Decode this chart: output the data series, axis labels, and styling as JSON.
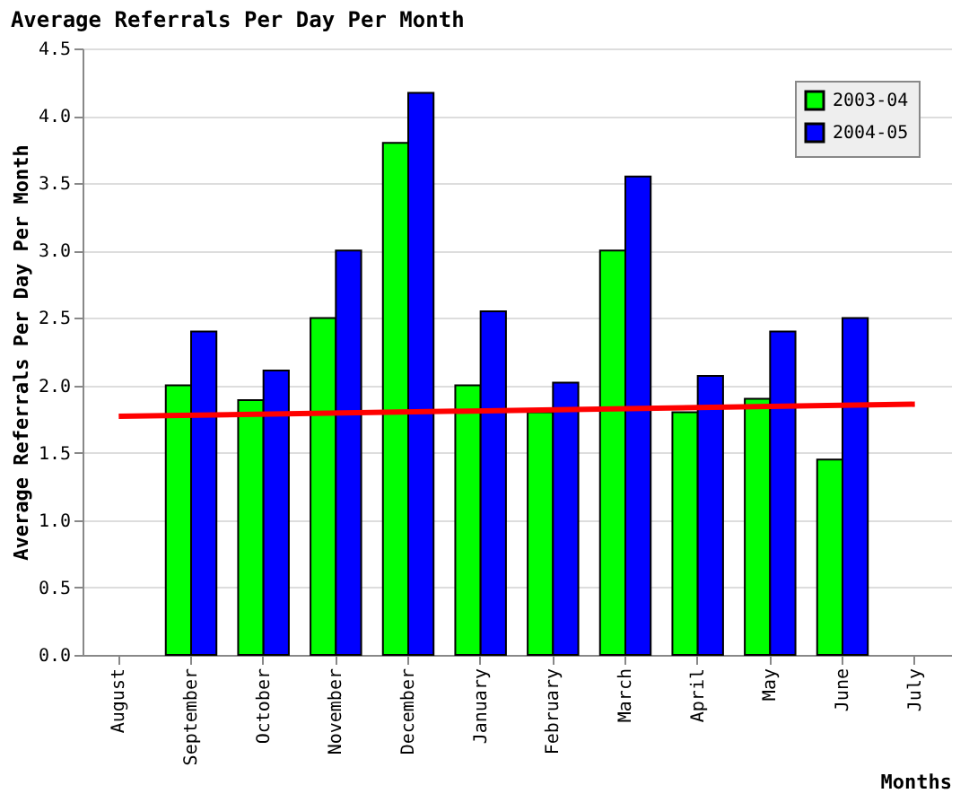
{
  "chart_data": {
    "type": "bar",
    "title": "Average Referrals Per Day Per Month",
    "xlabel": "Months",
    "ylabel": "Average Referrals Per Day Per Month",
    "categories": [
      "August",
      "September",
      "October",
      "November",
      "December",
      "January",
      "February",
      "March",
      "April",
      "May",
      "June",
      "July"
    ],
    "series": [
      {
        "name": "2003-04",
        "color": "#00ff00",
        "values": [
          null,
          2.0,
          1.89,
          2.5,
          3.8,
          2.0,
          1.8,
          3.0,
          1.8,
          1.9,
          1.45,
          null
        ]
      },
      {
        "name": "2004-05",
        "color": "#0000ff",
        "values": [
          null,
          2.4,
          2.11,
          3.0,
          4.17,
          2.55,
          2.02,
          3.55,
          2.07,
          2.4,
          2.5,
          null
        ]
      },
      {
        "type": "line",
        "color": "#ff0000",
        "x": [
          "August",
          "July"
        ],
        "values": [
          1.77,
          1.86
        ]
      }
    ],
    "ylim": [
      0,
      4.5
    ],
    "yticks": [
      {
        "value": 0,
        "label": "0.0"
      },
      0.5,
      {
        "value": 1,
        "label": "1.0"
      },
      1.5,
      {
        "value": 2,
        "label": "2.0"
      },
      2.5,
      {
        "value": 3,
        "label": "3.0"
      },
      3.5,
      {
        "value": 4,
        "label": "4.0"
      },
      4.5
    ],
    "grid": "y",
    "legend": "top right"
  }
}
